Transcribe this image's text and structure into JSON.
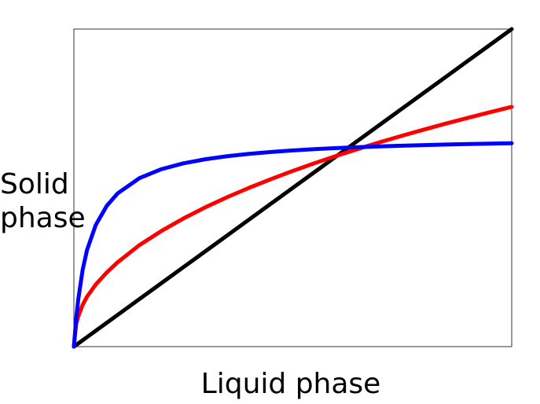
{
  "chart_data": {
    "type": "line",
    "title": "",
    "xlabel": "Liquid phase",
    "ylabel": [
      "Solid",
      "phase"
    ],
    "xlim": [
      0,
      1
    ],
    "ylim": [
      0,
      1
    ],
    "grid": false,
    "legend": "none",
    "x": [
      0,
      0.005,
      0.01,
      0.02,
      0.03,
      0.05,
      0.075,
      0.1,
      0.15,
      0.2,
      0.25,
      0.3,
      0.35,
      0.4,
      0.45,
      0.5,
      0.55,
      0.6,
      0.65,
      0.7,
      0.75,
      0.8,
      0.85,
      0.9,
      0.95,
      1.0
    ],
    "series": [
      {
        "color": "#000000",
        "values": [
          0,
          0.005,
          0.01,
          0.02,
          0.03,
          0.05,
          0.075,
          0.1,
          0.15,
          0.2,
          0.25,
          0.3,
          0.35,
          0.4,
          0.45,
          0.5,
          0.55,
          0.6,
          0.65,
          0.7,
          0.75,
          0.8,
          0.85,
          0.9,
          0.95,
          1.0
        ]
      },
      {
        "color": "#ff0000",
        "values": [
          0,
          0.0699,
          0.0958,
          0.1313,
          0.1573,
          0.1958,
          0.2335,
          0.2658,
          0.32,
          0.3642,
          0.4034,
          0.4386,
          0.4706,
          0.5,
          0.5275,
          0.5533,
          0.5778,
          0.6009,
          0.623,
          0.6441,
          0.6643,
          0.6837,
          0.7025,
          0.7205,
          0.7382,
          0.755
        ]
      },
      {
        "color": "#0000ff",
        "values": [
          0,
          0.0843,
          0.1489,
          0.2416,
          0.3042,
          0.3832,
          0.4432,
          0.4827,
          0.5309,
          0.5588,
          0.5771,
          0.59,
          0.5996,
          0.6071,
          0.613,
          0.6178,
          0.6218,
          0.6252,
          0.6281,
          0.6306,
          0.6328,
          0.6347,
          0.6364,
          0.6379,
          0.6392,
          0.6404
        ]
      }
    ]
  }
}
